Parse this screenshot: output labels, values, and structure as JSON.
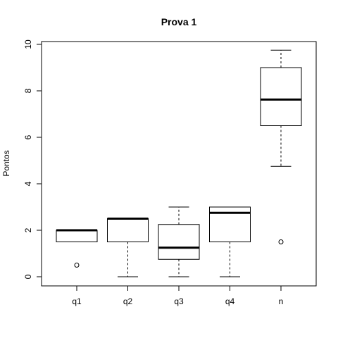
{
  "chart_data": {
    "type": "boxplot",
    "title": "Prova 1",
    "xlabel": "",
    "ylabel": "Pontos",
    "ylim": [
      0,
      10
    ],
    "yticks": [
      0,
      2,
      4,
      6,
      8,
      10
    ],
    "grid": false,
    "categories": [
      "q1",
      "q2",
      "q3",
      "q4",
      "n"
    ],
    "boxes": [
      {
        "name": "q1",
        "whisker_low": 1.5,
        "q1": 1.5,
        "median": 2.0,
        "q3": 2.0,
        "whisker_high": 2.0,
        "outliers": [
          0.5
        ]
      },
      {
        "name": "q2",
        "whisker_low": 0.0,
        "q1": 1.5,
        "median": 2.5,
        "q3": 2.5,
        "whisker_high": 2.5,
        "outliers": []
      },
      {
        "name": "q3",
        "whisker_low": 0.0,
        "q1": 0.75,
        "median": 1.25,
        "q3": 2.25,
        "whisker_high": 3.0,
        "outliers": []
      },
      {
        "name": "q4",
        "whisker_low": 0.0,
        "q1": 1.5,
        "median": 2.75,
        "q3": 3.0,
        "whisker_high": 3.0,
        "outliers": []
      },
      {
        "name": "n",
        "whisker_low": 4.75,
        "q1": 6.5,
        "median": 7.625,
        "q3": 9.0,
        "whisker_high": 9.75,
        "outliers": [
          1.5
        ]
      }
    ]
  }
}
